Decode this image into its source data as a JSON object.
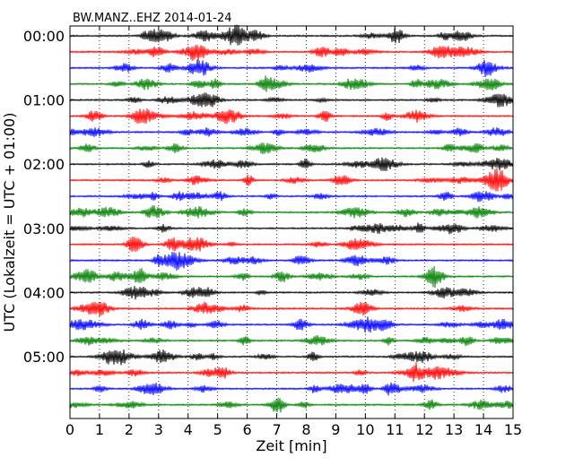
{
  "chart_data": {
    "type": "line",
    "title": "BW.MANZ..EHZ 2014-01-24",
    "xlabel": "Zeit  [min]",
    "ylabel": "UTC (Lokalzeit = UTC + 01:00)",
    "xlim": [
      0,
      15
    ],
    "x_ticks": [
      "0",
      "1",
      "2",
      "3",
      "4",
      "5",
      "6",
      "7",
      "8",
      "9",
      "10",
      "11",
      "12",
      "13",
      "14",
      "15"
    ],
    "y_tick_labels": [
      "00:00",
      "01:00",
      "02:00",
      "03:00",
      "04:00",
      "05:00"
    ],
    "vertical_grid": "dotted",
    "trace_count": 24,
    "trace_interval_minutes": 15,
    "trace_colors": [
      "#000000",
      "#ff0000",
      "#0000ff",
      "#008000"
    ]
  }
}
